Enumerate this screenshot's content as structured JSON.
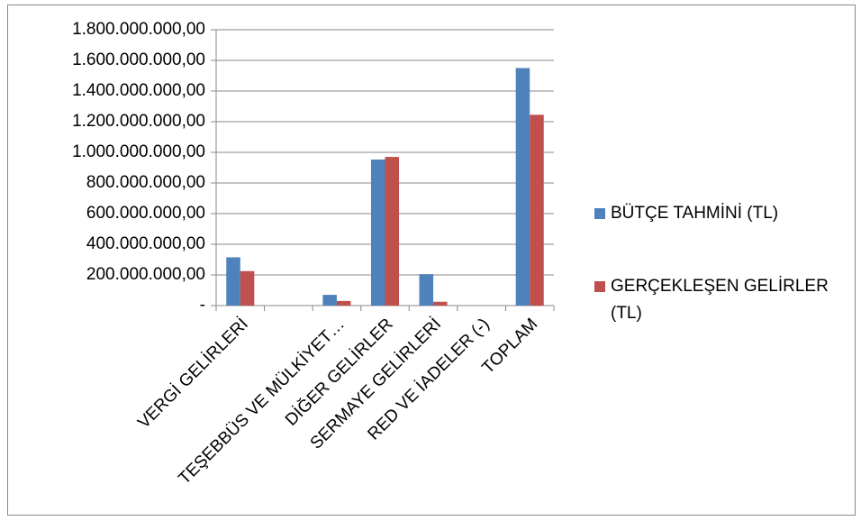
{
  "chart_data": {
    "type": "bar",
    "categories": [
      "VERGİ GELİRLERİ",
      null,
      "TEŞEBBÜS VE MÜLKİYET…",
      "DİĞER GELİRLER",
      "SERMAYE GELİRLERİ",
      "RED VE İADELER (-)",
      "TOPLAM"
    ],
    "series": [
      {
        "name": "BÜTÇE TAHMİNİ (TL)",
        "color": "#4f81bd",
        "values": [
          315000000,
          null,
          70000000,
          953000000,
          205000000,
          0,
          1550000000
        ]
      },
      {
        "name": "GERÇEKLEŞEN GELİRLER (TL)",
        "color": "#c0504d",
        "values": [
          225000000,
          null,
          30000000,
          970000000,
          25000000,
          0,
          1245000000
        ]
      }
    ],
    "ylim": [
      0,
      1800000000
    ],
    "yticks": [
      {
        "value": 0,
        "label": "-"
      },
      {
        "value": 200000000,
        "label": "200.000.000,00"
      },
      {
        "value": 400000000,
        "label": "400.000.000,00"
      },
      {
        "value": 600000000,
        "label": "600.000.000,00"
      },
      {
        "value": 800000000,
        "label": "800.000.000,00"
      },
      {
        "value": 1000000000,
        "label": "1.000.000.000,00"
      },
      {
        "value": 1200000000,
        "label": "1.200.000.000,00"
      },
      {
        "value": 1400000000,
        "label": "1.400.000.000,00"
      },
      {
        "value": 1600000000,
        "label": "1.600.000.000,00"
      },
      {
        "value": 1800000000,
        "label": "1.800.000.000,00"
      }
    ],
    "grid": true,
    "legend": "right"
  }
}
